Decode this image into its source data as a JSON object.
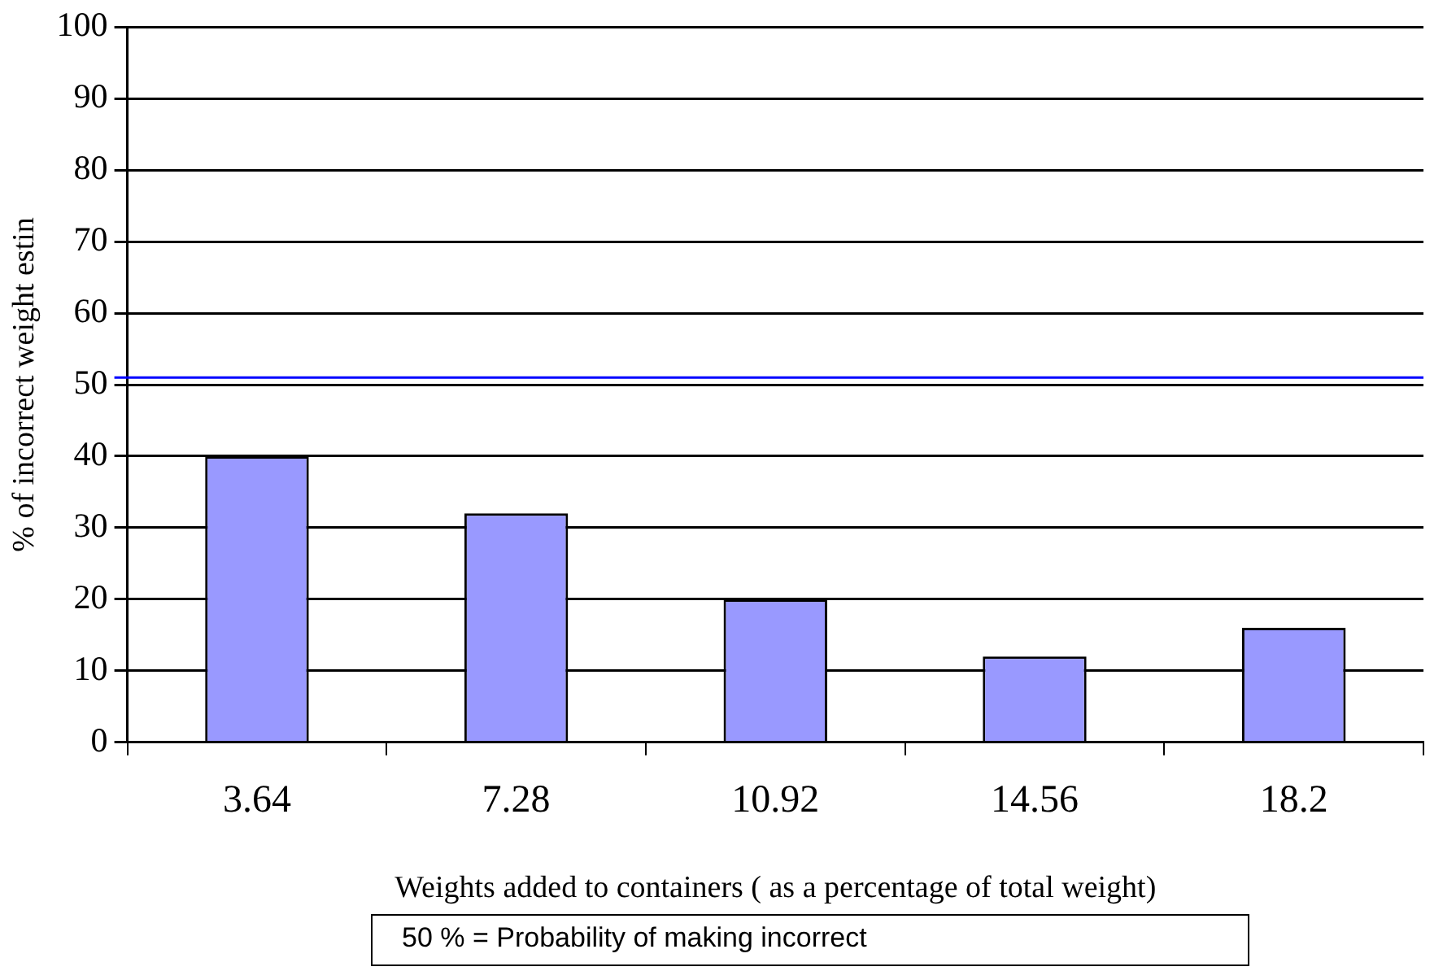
{
  "chart_data": {
    "type": "bar",
    "categories": [
      "3.64",
      "7.28",
      "10.92",
      "14.56",
      "18.2"
    ],
    "values": [
      40,
      32,
      20,
      12,
      16
    ],
    "color": "#9999ff",
    "xlabel": "Weights added to containers ( as a percentage of total weight)",
    "ylabel": "% of incorrect weight estin",
    "ylim": [
      0,
      100
    ],
    "yticks": [
      0,
      10,
      20,
      30,
      40,
      50,
      60,
      70,
      80,
      90,
      100
    ],
    "grid": "y",
    "ref_lines": [
      {
        "axis": "y",
        "value": 51,
        "color": "#0000ff"
      }
    ],
    "annotations": [
      "50 %  =  Probability of making incorrect"
    ]
  }
}
